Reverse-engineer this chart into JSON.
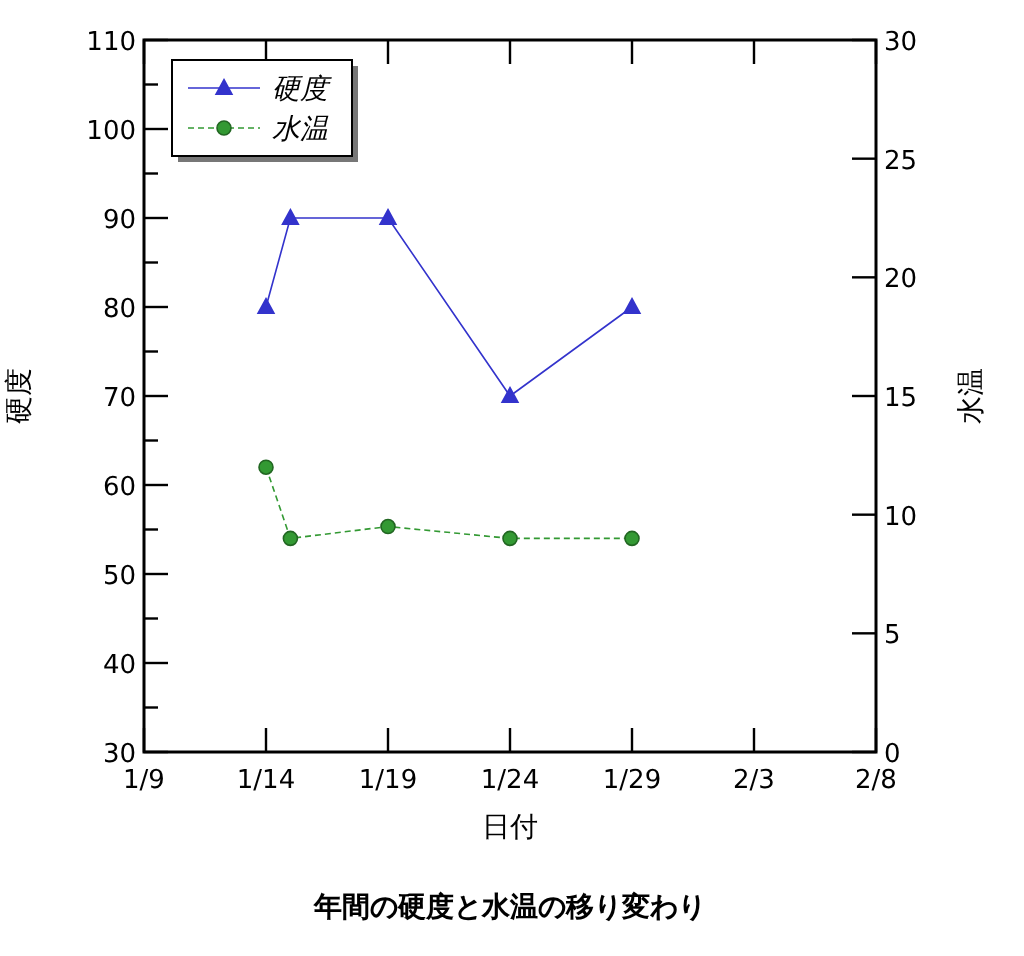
{
  "chart_data": {
    "type": "line",
    "title": "年間の硬度と水温の移り変わり",
    "xlabel": "日付",
    "ylabel": "硬度",
    "y2label": "水温",
    "x": [
      "--01-14",
      "--01-15",
      "--01-19",
      "--01-24",
      "--01-29"
    ],
    "series": [
      {
        "name": "硬度",
        "color": "#3333cc",
        "values": [
          80,
          90,
          90,
          70,
          80
        ],
        "marker": "triangle",
        "line_style": "solid"
      },
      {
        "name": "水温",
        "color": "#339933",
        "values": [
          12,
          9,
          9.5,
          9,
          9
        ],
        "axis": "y2",
        "marker": "circle",
        "line_style": "dashed"
      }
    ],
    "xlim": [
      "--01-09",
      "--02-08"
    ],
    "xticks": [
      {
        "value": "--01-09",
        "label": "1/9"
      },
      {
        "value": "--01-14",
        "label": "1/14"
      },
      {
        "value": "--01-19",
        "label": "1/19"
      },
      {
        "value": "--01-24",
        "label": "1/24"
      },
      {
        "value": "--01-29",
        "label": "1/29"
      },
      {
        "value": "--02-03",
        "label": "2/3"
      },
      {
        "value": "--02-08",
        "label": "2/8"
      }
    ],
    "ylim": [
      30,
      110
    ],
    "yticks": [
      30,
      {
        "value": 35,
        "label": null
      },
      40,
      {
        "value": 45,
        "label": null
      },
      50,
      {
        "value": 55,
        "label": null
      },
      60,
      {
        "value": 65,
        "label": null
      },
      70,
      {
        "value": 75,
        "label": null
      },
      80,
      {
        "value": 85,
        "label": null
      },
      90,
      {
        "value": 95,
        "label": null
      },
      100,
      {
        "value": 105,
        "label": null
      },
      110
    ],
    "y2lim": [
      0,
      30
    ],
    "y2ticks": [
      0,
      5,
      10,
      15,
      20,
      25,
      30
    ],
    "grid": false,
    "legend": "top left"
  }
}
